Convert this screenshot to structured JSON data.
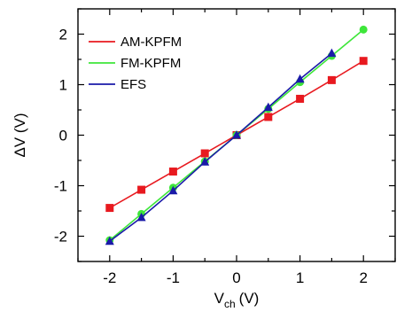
{
  "chart_data": {
    "type": "line",
    "xlabel_main": "V",
    "xlabel_sub": "ch",
    "xlabel_unit": "(V)",
    "ylabel": "ΔV (V)",
    "xlim": [
      -2.5,
      2.5
    ],
    "ylim": [
      -2.5,
      2.5
    ],
    "x_ticks": [
      -2,
      -1,
      0,
      1,
      2
    ],
    "y_ticks": [
      -2,
      -1,
      0,
      1,
      2
    ],
    "grid": false,
    "legend_position": "top-left",
    "x": [
      -2,
      -1.5,
      -1,
      -0.5,
      0,
      0.5,
      1,
      1.5,
      2
    ],
    "series": [
      {
        "name": "AM-KPFM",
        "color": "#e8191f",
        "marker": "square",
        "x": [
          -2,
          -1.5,
          -1,
          -0.5,
          0,
          0.5,
          1,
          1.5,
          2
        ],
        "values": [
          -1.44,
          -1.08,
          -0.72,
          -0.36,
          0,
          0.36,
          0.72,
          1.09,
          1.47
        ]
      },
      {
        "name": "FM-KPFM",
        "color": "#3ee63a",
        "marker": "circle",
        "x": [
          -2,
          -1.5,
          -1,
          -0.5,
          0,
          0.5,
          1,
          1.5,
          2
        ],
        "values": [
          -2.08,
          -1.56,
          -1.04,
          -0.52,
          0,
          0.52,
          1.05,
          1.57,
          2.09
        ]
      },
      {
        "name": "EFS",
        "color": "#1a1aa8",
        "marker": "triangle",
        "x": [
          -2,
          -1.5,
          -1,
          -0.5,
          0,
          0.5,
          1,
          1.5
        ],
        "values": [
          -2.1,
          -1.63,
          -1.1,
          -0.53,
          0,
          0.55,
          1.11,
          1.62
        ]
      }
    ]
  }
}
